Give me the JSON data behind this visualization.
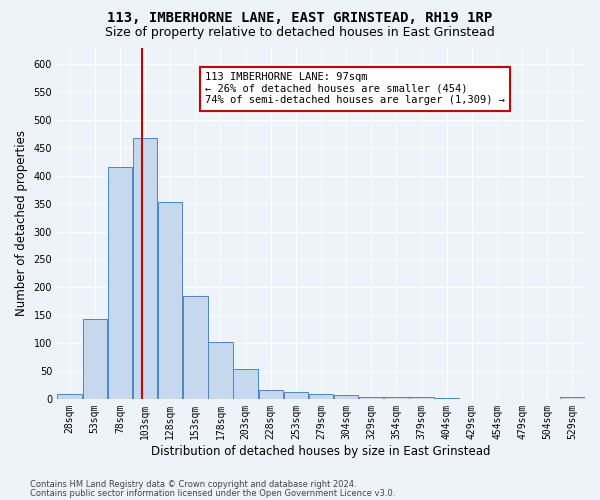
{
  "title": "113, IMBERHORNE LANE, EAST GRINSTEAD, RH19 1RP",
  "subtitle": "Size of property relative to detached houses in East Grinstead",
  "xlabel": "Distribution of detached houses by size in East Grinstead",
  "ylabel": "Number of detached properties",
  "footer_line1": "Contains HM Land Registry data © Crown copyright and database right 2024.",
  "footer_line2": "Contains public sector information licensed under the Open Government Licence v3.0.",
  "annotation_title": "113 IMBERHORNE LANE: 97sqm",
  "annotation_line2": "← 26% of detached houses are smaller (454)",
  "annotation_line3": "74% of semi-detached houses are larger (1,309) →",
  "bar_categories": [
    "28sqm",
    "53sqm",
    "78sqm",
    "103sqm",
    "128sqm",
    "153sqm",
    "178sqm",
    "203sqm",
    "228sqm",
    "253sqm",
    "279sqm",
    "304sqm",
    "329sqm",
    "354sqm",
    "379sqm",
    "404sqm",
    "429sqm",
    "454sqm",
    "479sqm",
    "504sqm",
    "529sqm"
  ],
  "bar_values": [
    8,
    143,
    415,
    468,
    353,
    185,
    102,
    53,
    15,
    12,
    9,
    7,
    4,
    3,
    3,
    2,
    0,
    0,
    0,
    0,
    3
  ],
  "bar_color": "#c5d8ed",
  "bar_edge_color": "#4a86c8",
  "red_line_index": 2.88,
  "ylim": [
    0,
    630
  ],
  "yticks": [
    0,
    50,
    100,
    150,
    200,
    250,
    300,
    350,
    400,
    450,
    500,
    550,
    600
  ],
  "background_color": "#eef2f9",
  "plot_bg_color": "#eef2f9",
  "grid_color": "#ffffff",
  "annotation_box_color": "#ffffff",
  "annotation_box_edge": "#cc0000",
  "title_fontsize": 10,
  "subtitle_fontsize": 9,
  "axis_label_fontsize": 8.5,
  "tick_fontsize": 7,
  "annotation_fontsize": 7.5,
  "footer_fontsize": 6
}
